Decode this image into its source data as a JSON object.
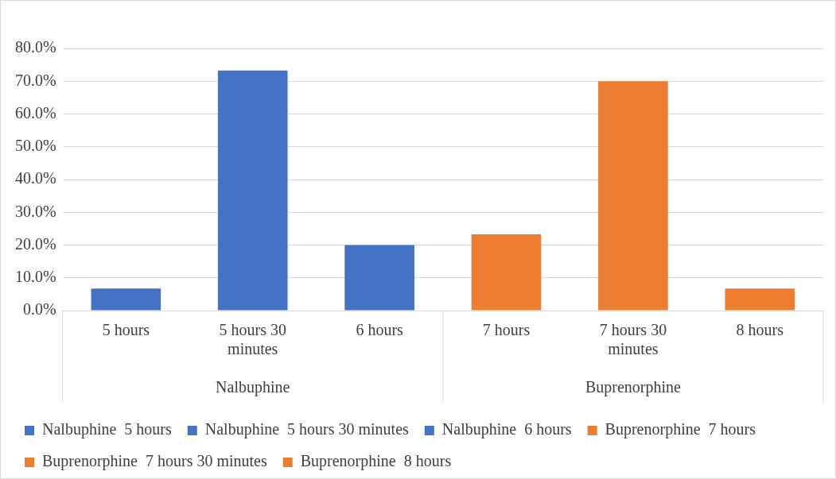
{
  "chart_data": {
    "type": "bar",
    "categories": [
      "5 hours",
      "5 hours 30 minutes",
      "6 hours",
      "7 hours",
      "7 hours 30 minutes",
      "8 hours"
    ],
    "series": [
      {
        "name": "Nalbuphine  5 hours",
        "color": "#4472c4",
        "values": [
          6.7,
          null,
          null,
          null,
          null,
          null
        ]
      },
      {
        "name": "Nalbuphine  5 hours 30 minutes",
        "color": "#4472c4",
        "values": [
          null,
          73.3,
          null,
          null,
          null,
          null
        ]
      },
      {
        "name": "Nalbuphine  6 hours",
        "color": "#4472c4",
        "values": [
          null,
          null,
          20.0,
          null,
          null,
          null
        ]
      },
      {
        "name": "Buprenorphine  7 hours",
        "color": "#ed7d31",
        "values": [
          null,
          null,
          null,
          23.3,
          null,
          null
        ]
      },
      {
        "name": "Buprenorphine  7 hours 30 minutes",
        "color": "#ed7d31",
        "values": [
          null,
          null,
          null,
          null,
          70.0,
          null
        ]
      },
      {
        "name": "Buprenorphine  8 hours",
        "color": "#ed7d31",
        "values": [
          null,
          null,
          null,
          null,
          null,
          6.7
        ]
      }
    ],
    "annotations": [
      "Nalbuphine",
      "Buprenorphine"
    ],
    "ylim": [
      0,
      80
    ],
    "yticks": [
      {
        "value": 0,
        "label": "0.0%"
      },
      {
        "value": 10,
        "label": "10.0%"
      },
      {
        "value": 20,
        "label": "20.0%"
      },
      {
        "value": 30,
        "label": "30.0%"
      },
      {
        "value": 40,
        "label": "40.0%"
      },
      {
        "value": 50,
        "label": "50.0%"
      },
      {
        "value": 60,
        "label": "60.0%"
      },
      {
        "value": 70,
        "label": "70.0%"
      },
      {
        "value": 80,
        "label": "80.0%"
      }
    ],
    "grid": "y",
    "legend": "bottom"
  }
}
